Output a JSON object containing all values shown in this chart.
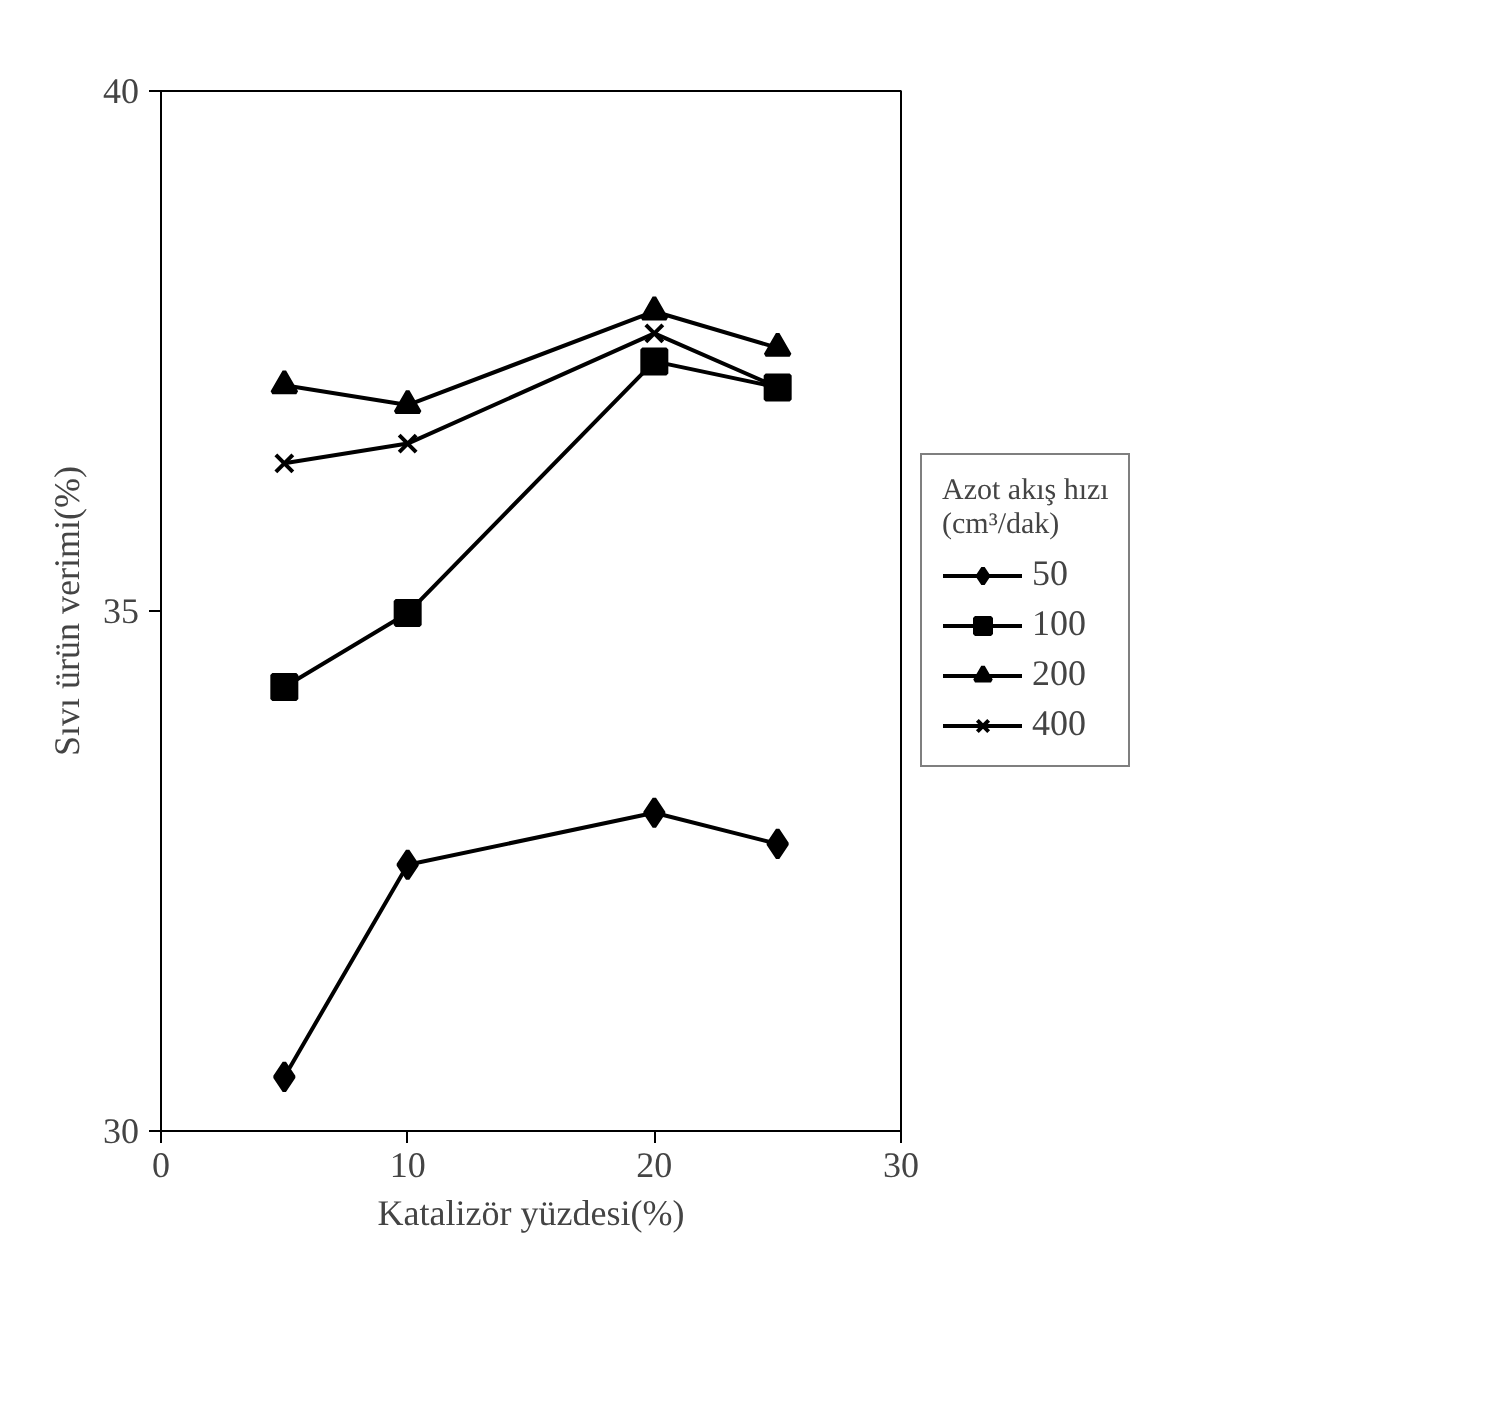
{
  "chart_data": {
    "type": "line",
    "xlabel": "Katalizör yüzdesi(%)",
    "ylabel": "Sıvı ürün verimi(%)",
    "legend_title": "Azot akış hızı (cm³/dak)",
    "x": [
      5,
      10,
      20,
      25
    ],
    "series": [
      {
        "name": "50",
        "color": "#000000",
        "marker": "diamond",
        "values": [
          30.52,
          32.56,
          33.06,
          32.76
        ]
      },
      {
        "name": "100",
        "color": "#000000",
        "marker": "square",
        "values": [
          34.27,
          34.98,
          37.4,
          37.15
        ]
      },
      {
        "name": "200",
        "color": "#000000",
        "marker": "triangle",
        "values": [
          37.17,
          36.98,
          37.88,
          37.53
        ]
      },
      {
        "name": "400",
        "color": "#000000",
        "marker": "cross",
        "values": [
          36.42,
          36.61,
          37.67,
          37.15
        ]
      }
    ],
    "xlim": [
      0,
      30
    ],
    "xticks": [
      0,
      10,
      20,
      30
    ],
    "ylim": [
      30,
      40
    ],
    "yticks": [
      30,
      35,
      40
    ],
    "grid": false,
    "legend": "right",
    "line_style": "solid"
  }
}
